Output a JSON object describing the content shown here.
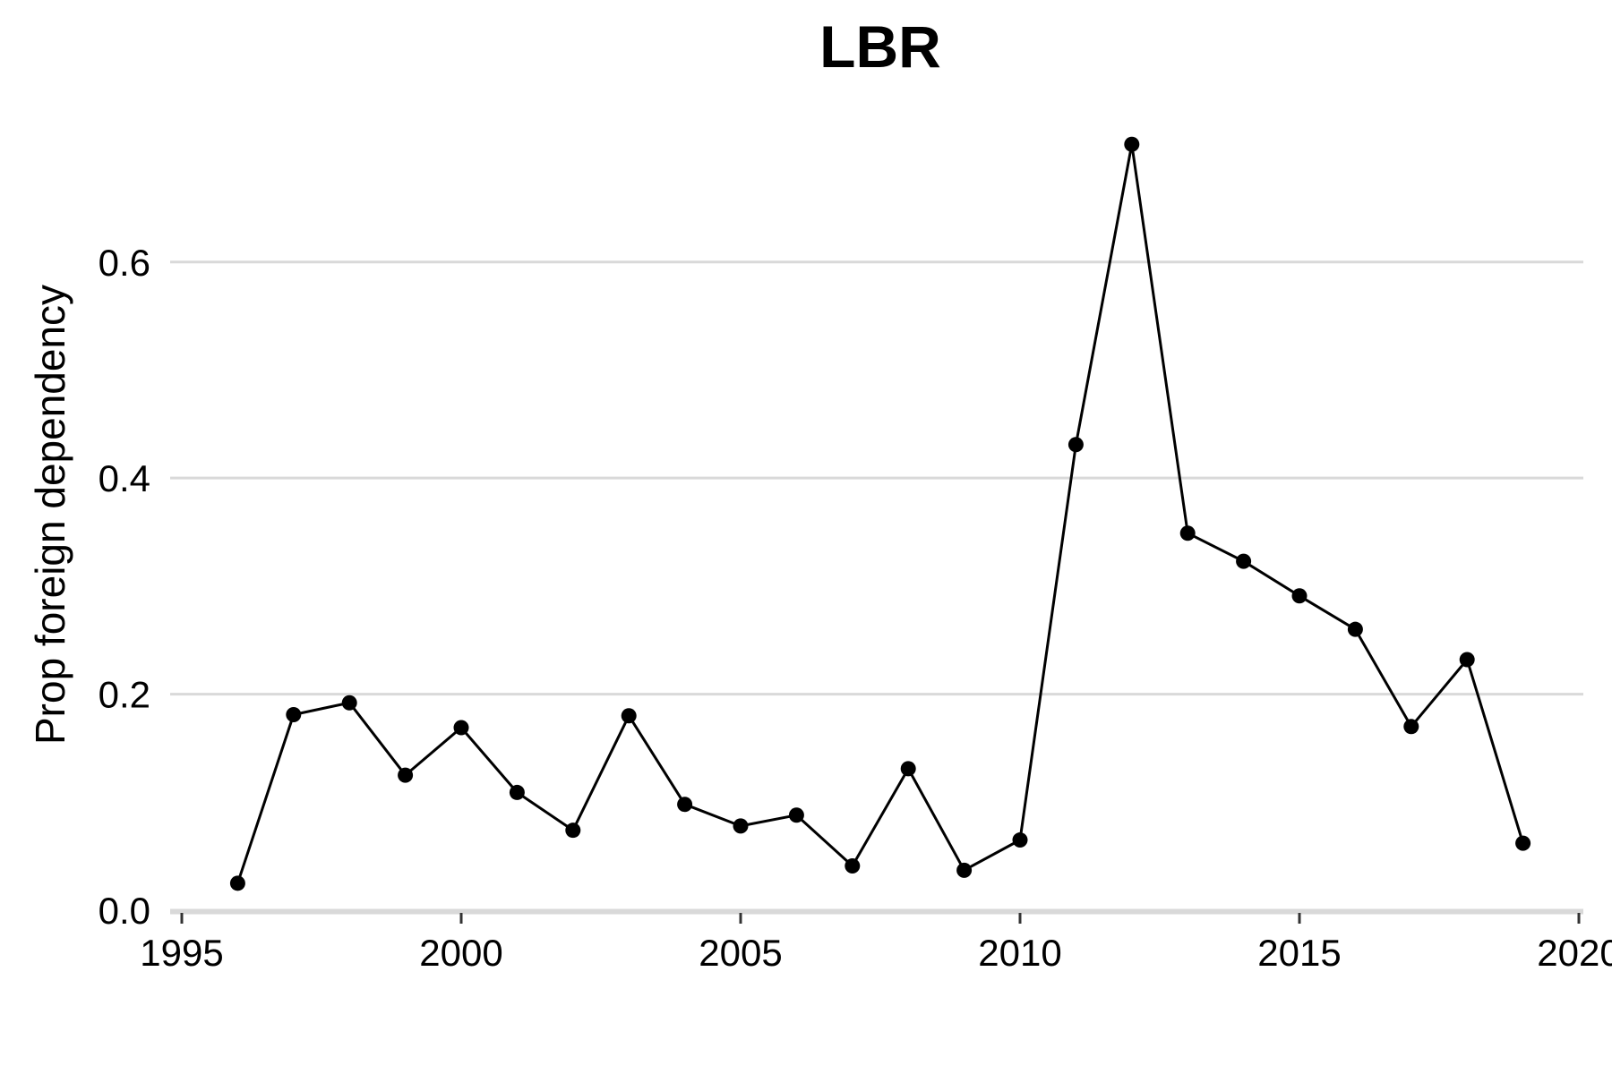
{
  "chart_data": {
    "type": "line",
    "title": "LBR",
    "xlabel": "",
    "ylabel": "Prop foreign dependency",
    "xlim": [
      1995,
      2020
    ],
    "ylim": [
      0.0,
      0.71
    ],
    "x_ticks": [
      1995,
      2000,
      2005,
      2010,
      2015,
      2020
    ],
    "x_tick_labels": [
      "1995",
      "2000",
      "2005",
      "2010",
      "2015",
      "2020"
    ],
    "y_ticks": [
      0.0,
      0.2,
      0.4,
      0.6
    ],
    "y_tick_labels": [
      "0.0",
      "0.2",
      "0.4",
      "0.6"
    ],
    "grid": "horizontal",
    "line_color": "#000000",
    "grid_color": "#d9d9d9",
    "series": [
      {
        "x": [
          1996,
          1997,
          1998,
          1999,
          2000,
          2001,
          2002,
          2003,
          2004,
          2005,
          2006,
          2007,
          2008,
          2009,
          2010,
          2011,
          2012,
          2013,
          2014,
          2015,
          2016,
          2017,
          2018,
          2019
        ],
        "values": [
          0.025,
          0.181,
          0.192,
          0.125,
          0.169,
          0.109,
          0.074,
          0.18,
          0.098,
          0.078,
          0.088,
          0.041,
          0.131,
          0.037,
          0.065,
          0.431,
          0.709,
          0.349,
          0.323,
          0.291,
          0.26,
          0.17,
          0.232,
          0.062
        ]
      }
    ]
  }
}
